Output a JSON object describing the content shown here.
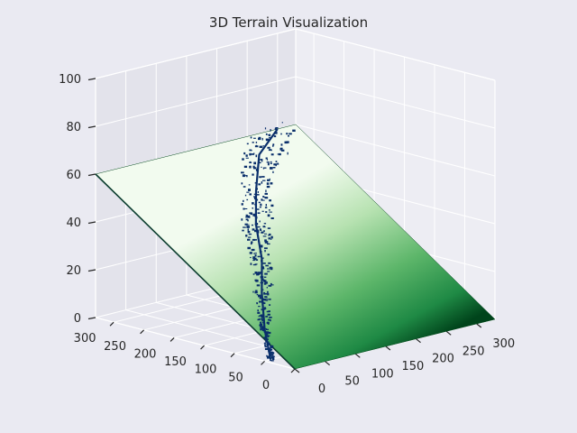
{
  "chart_data": {
    "type": "surface3d",
    "title": "3D Terrain Visualization",
    "xlabel": "",
    "ylabel": "",
    "zlabel": "",
    "x_ticks": [
      0,
      50,
      100,
      150,
      200,
      250,
      300
    ],
    "y_ticks": [
      0,
      50,
      100,
      150,
      200,
      250,
      300
    ],
    "z_ticks": [
      0,
      20,
      40,
      60,
      80,
      100
    ],
    "xlim": [
      0,
      330
    ],
    "ylim": [
      0,
      330
    ],
    "zlim": [
      0,
      100
    ],
    "colormap": "Greens",
    "river_color": "#0a2f6b",
    "surface": {
      "corners": [
        {
          "x": 0,
          "y": 0,
          "z": 0
        },
        {
          "x": 330,
          "y": 0,
          "z": 0
        },
        {
          "x": 0,
          "y": 330,
          "z": 60
        },
        {
          "x": 330,
          "y": 330,
          "z": 60
        }
      ],
      "river_path": [
        {
          "x": 10,
          "y": 50,
          "z": 0
        },
        {
          "x": 40,
          "y": 90,
          "z": 8
        },
        {
          "x": 80,
          "y": 135,
          "z": 18
        },
        {
          "x": 120,
          "y": 175,
          "z": 27
        },
        {
          "x": 150,
          "y": 215,
          "z": 37
        },
        {
          "x": 190,
          "y": 255,
          "z": 46
        },
        {
          "x": 240,
          "y": 300,
          "z": 55
        },
        {
          "x": 300,
          "y": 330,
          "z": 60
        }
      ]
    },
    "grid": true,
    "legend": "none"
  }
}
